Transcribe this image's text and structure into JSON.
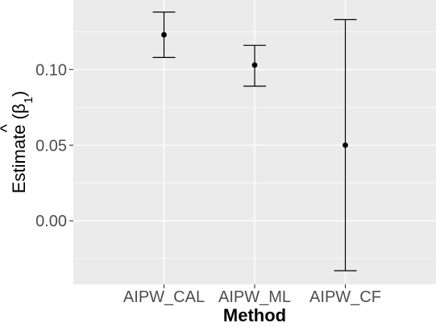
{
  "chart_data": {
    "type": "errorbar",
    "categories": [
      "AIPW_CAL",
      "AIPW_ML",
      "AIPW_CF"
    ],
    "estimates": [
      0.123,
      0.103,
      0.05
    ],
    "lower": [
      0.108,
      0.089,
      -0.033
    ],
    "upper": [
      0.138,
      0.116,
      0.133
    ],
    "xlabel": "Method",
    "ylabel": {
      "prefix": "Estimate (",
      "hat": "^",
      "symbol": "β",
      "subscript": "1",
      "suffix": ")"
    },
    "yticks": [
      0.0,
      0.05,
      0.1
    ],
    "ytick_labels": [
      "0.00",
      "0.05",
      "0.10"
    ],
    "ylim": [
      -0.042,
      0.146
    ],
    "grid": true,
    "colors": {
      "panel": "#ebebeb",
      "grid": "#ffffff",
      "marks": "#000000",
      "tick_text": "#4d4d4d"
    }
  }
}
